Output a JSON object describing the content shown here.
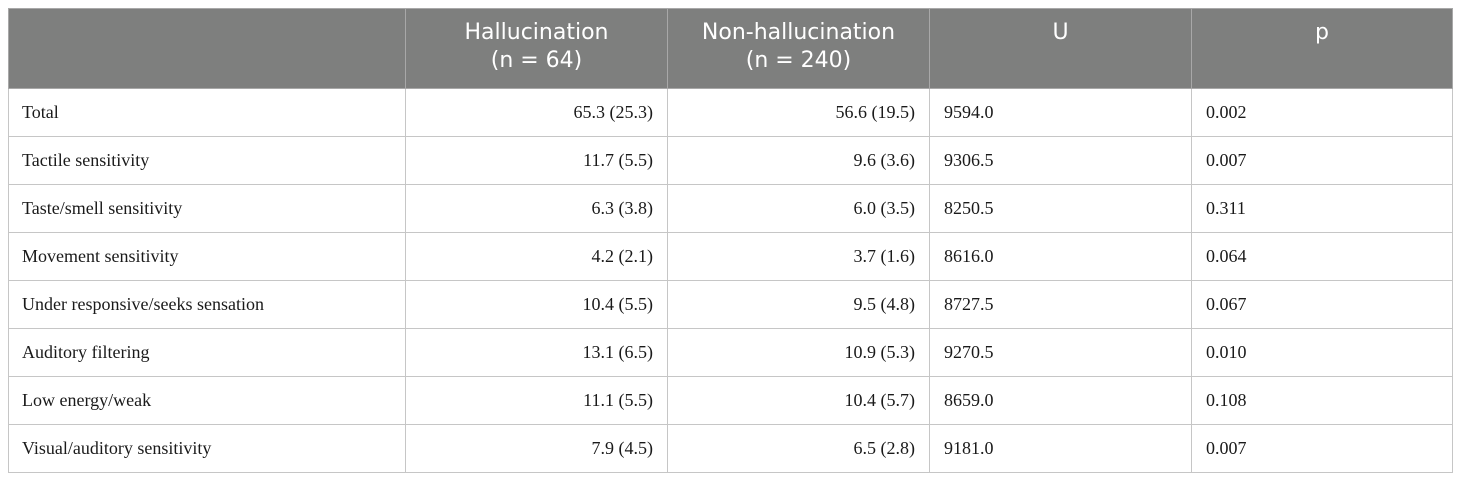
{
  "table": {
    "headers": [
      {
        "lines": [
          "",
          ""
        ]
      },
      {
        "lines": [
          "Hallucination",
          "(n = 64)"
        ]
      },
      {
        "lines": [
          "Non-hallucination",
          "(n = 240)"
        ]
      },
      {
        "lines": [
          "U",
          ""
        ]
      },
      {
        "lines": [
          "p",
          ""
        ]
      }
    ],
    "rows": [
      {
        "label": "Total",
        "hallucination": "65.3 (25.3)",
        "non_hallucination": "56.6 (19.5)",
        "u": "9594.0",
        "p": "0.002"
      },
      {
        "label": "Tactile sensitivity",
        "hallucination": "11.7 (5.5)",
        "non_hallucination": "9.6 (3.6)",
        "u": "9306.5",
        "p": "0.007"
      },
      {
        "label": "Taste/smell sensitivity",
        "hallucination": "6.3 (3.8)",
        "non_hallucination": "6.0 (3.5)",
        "u": "8250.5",
        "p": "0.311"
      },
      {
        "label": "Movement sensitivity",
        "hallucination": "4.2 (2.1)",
        "non_hallucination": "3.7 (1.6)",
        "u": "8616.0",
        "p": "0.064"
      },
      {
        "label": "Under responsive/seeks sensation",
        "hallucination": "10.4 (5.5)",
        "non_hallucination": "9.5 (4.8)",
        "u": "8727.5",
        "p": "0.067"
      },
      {
        "label": "Auditory filtering",
        "hallucination": "13.1 (6.5)",
        "non_hallucination": "10.9 (5.3)",
        "u": "9270.5",
        "p": "0.010"
      },
      {
        "label": "Low energy/weak",
        "hallucination": "11.1 (5.5)",
        "non_hallucination": "10.4 (5.7)",
        "u": "8659.0",
        "p": "0.108"
      },
      {
        "label": "Visual/auditory sensitivity",
        "hallucination": "7.9 (4.5)",
        "non_hallucination": "6.5 (2.8)",
        "u": "9181.0",
        "p": "0.007"
      }
    ]
  },
  "colors": {
    "header_bg": "#7e7f7e",
    "header_text": "#ffffff",
    "border": "#c6c6c6"
  }
}
